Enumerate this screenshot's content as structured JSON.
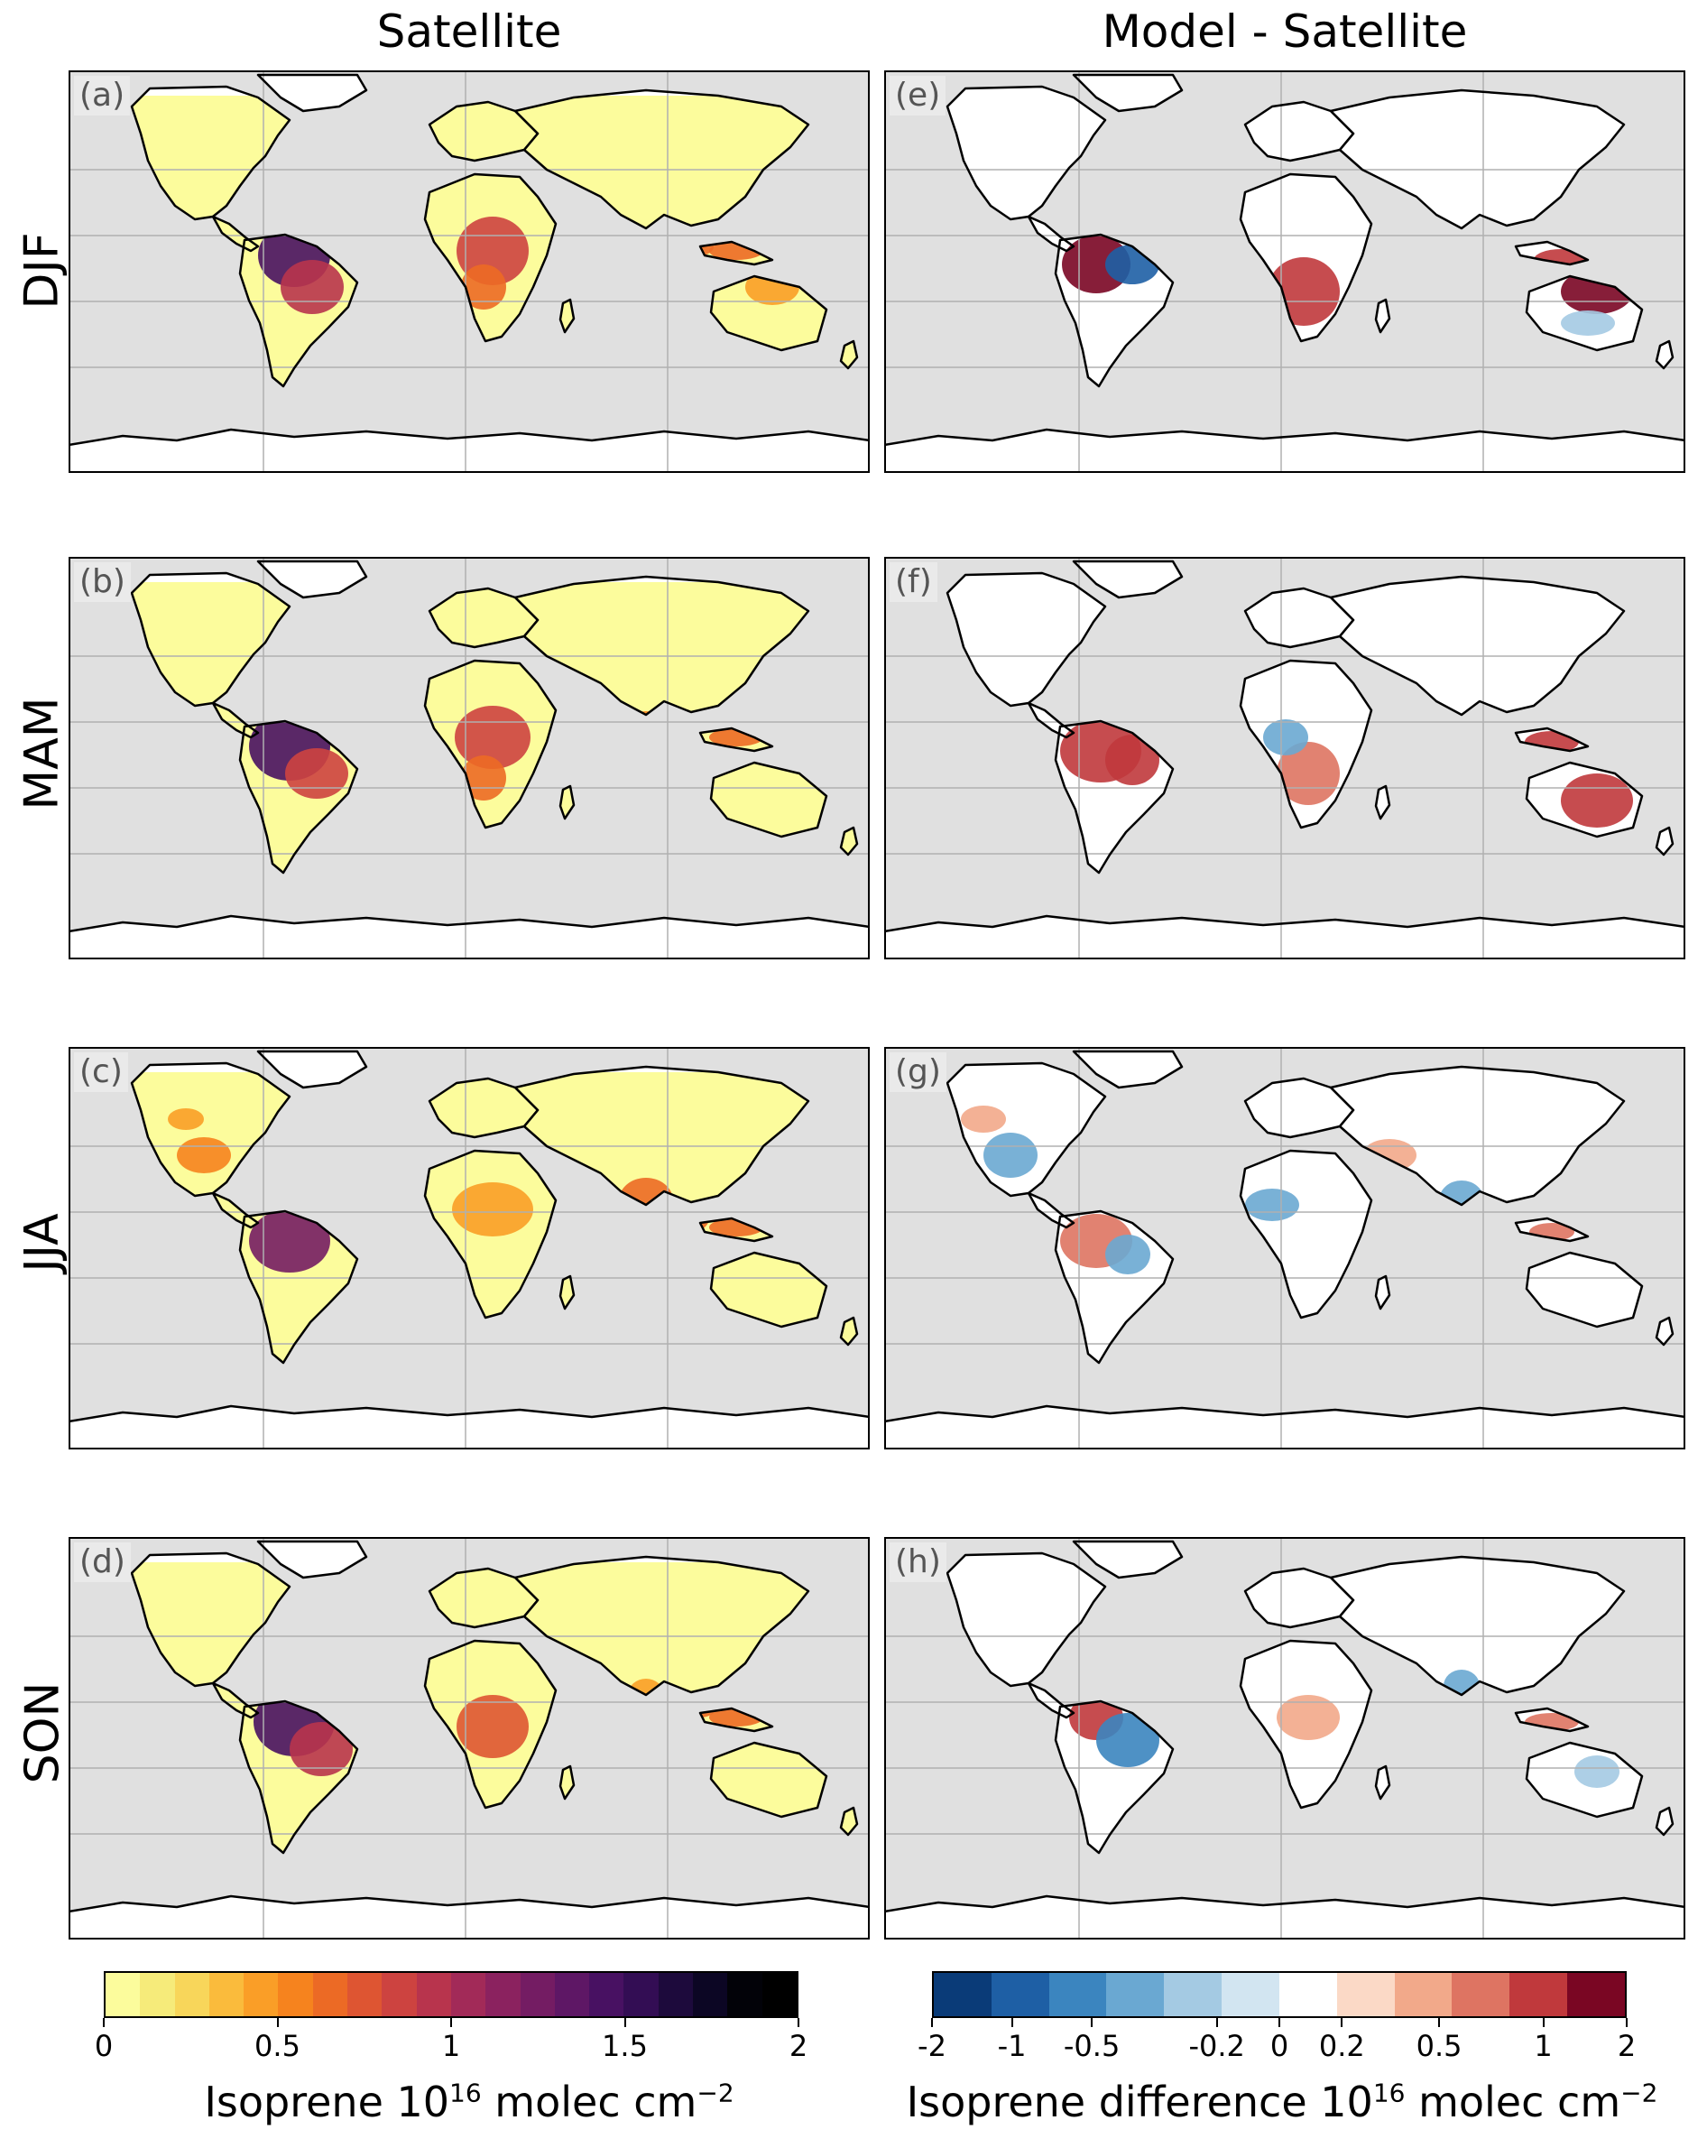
{
  "columns": {
    "left": "Satellite",
    "right": "Model - Satellite"
  },
  "rows": [
    "DJF",
    "MAM",
    "JJA",
    "SON"
  ],
  "panels": {
    "a": "(a)",
    "b": "(b)",
    "c": "(c)",
    "d": "(d)",
    "e": "(e)",
    "f": "(f)",
    "g": "(g)",
    "h": "(h)"
  },
  "colorbar_left": {
    "label_prefix": "Isoprene 10",
    "label_exp": "16",
    "label_suffix": " molec cm",
    "label_exp2": "−2",
    "range": [
      0,
      2
    ],
    "ticks": [
      "0",
      "0.5",
      "1",
      "1.5",
      "2"
    ],
    "colors": [
      "#fcfc9c",
      "#f6eb7a",
      "#f8d65a",
      "#fabb3c",
      "#fa9e27",
      "#f6831e",
      "#ec6a25",
      "#de5532",
      "#cd4340",
      "#b8344d",
      "#a22a58",
      "#8b225f",
      "#741c63",
      "#5e1765",
      "#481162",
      "#330d54",
      "#1d0a3c",
      "#0c0624",
      "#020208",
      "#000000"
    ]
  },
  "colorbar_right": {
    "label_prefix": "Isoprene difference 10",
    "label_exp": "16",
    "label_suffix": " molec cm",
    "label_exp2": "−2",
    "ticks": [
      "-2",
      "-1",
      "-0.5",
      "-0.2",
      "0",
      "0.2",
      "0.5",
      "1",
      "2"
    ],
    "colors": [
      "#0a3b78",
      "#1e5fa5",
      "#3b85bf",
      "#6aa8d2",
      "#a4cae3",
      "#d2e5f1",
      "#ffffff",
      "#fbd9c6",
      "#f2a98a",
      "#de7462",
      "#c0393c",
      "#7a0623"
    ]
  },
  "map_colors": {
    "ocean": "#e0e0e0",
    "land": "#ffffff",
    "grid": "#b0b0b0",
    "coast": "#000000"
  }
}
